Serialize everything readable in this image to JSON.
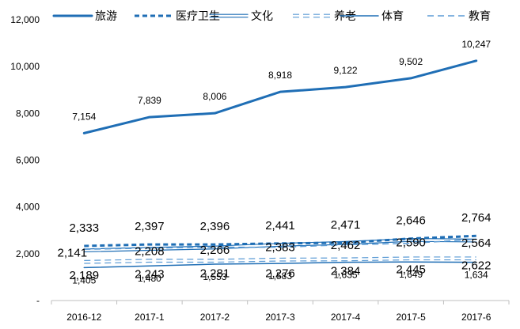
{
  "chart_data": {
    "type": "line",
    "categories": [
      "2016-12",
      "2017-1",
      "2017-2",
      "2017-3",
      "2017-4",
      "2017-5",
      "2017-6"
    ],
    "ylim": [
      0,
      12000
    ],
    "yticks": [
      0,
      2000,
      4000,
      6000,
      8000,
      10000,
      12000
    ],
    "ytick_labels": [
      "-",
      "2,000",
      "4,000",
      "6,000",
      "8,000",
      "10,000",
      "12,000"
    ],
    "grid": false,
    "legend_position": "top",
    "series": [
      {
        "name": "旅游",
        "values": [
          7154,
          7839,
          8006,
          8918,
          9122,
          9502,
          10247
        ],
        "labels": [
          "7,154",
          "7,839",
          "8,006",
          "8,918",
          "9,122",
          "9,502",
          "10,247"
        ],
        "color": "#1f6eb5",
        "dash": "solid",
        "weight": "thick"
      },
      {
        "name": "医疗卫生",
        "values": [
          2333,
          2397,
          2396,
          2441,
          2471,
          2646,
          2764
        ],
        "labels": [
          "2,333",
          "2,397",
          "2,396",
          "2,441",
          "2,471",
          "2,646",
          "2,764"
        ],
        "color": "#1f6eb5",
        "dash": "dashed",
        "weight": "thick"
      },
      {
        "name": "文化",
        "values": [
          2141,
          2208,
          2266,
          2383,
          2462,
          2590,
          2564
        ],
        "labels": [
          "2,141",
          "2,208",
          "2,266",
          "2,383",
          "2,462",
          "2,590",
          "2,564"
        ],
        "color": "#1f6eb5",
        "dash": "double",
        "weight": "double"
      },
      {
        "name": "养老",
        "values": [
          1650,
          1700,
          1700,
          1750,
          1760,
          1800,
          1800
        ],
        "labels": [],
        "color": "#5b9bd5",
        "dash": "dashed",
        "weight": "double"
      },
      {
        "name": "体育",
        "values": [
          1405,
          1480,
          1553,
          1583,
          1635,
          1649,
          1634
        ],
        "labels": [
          "1,405",
          "1,480",
          "1,553",
          "1,583",
          "1,635",
          "1,649",
          "1,634"
        ],
        "color": "#1f6eb5",
        "dash": "solid",
        "weight": "thin"
      },
      {
        "name": "教育",
        "values": [
          2189,
          2243,
          2281,
          2276,
          2384,
          2445,
          2622
        ],
        "labels": [
          "2,189",
          "2,243",
          "2,281",
          "2,276",
          "2,384",
          "2,445",
          "2,622"
        ],
        "color": "#5b9bd5",
        "dash": "dashed",
        "weight": "thin"
      }
    ]
  }
}
